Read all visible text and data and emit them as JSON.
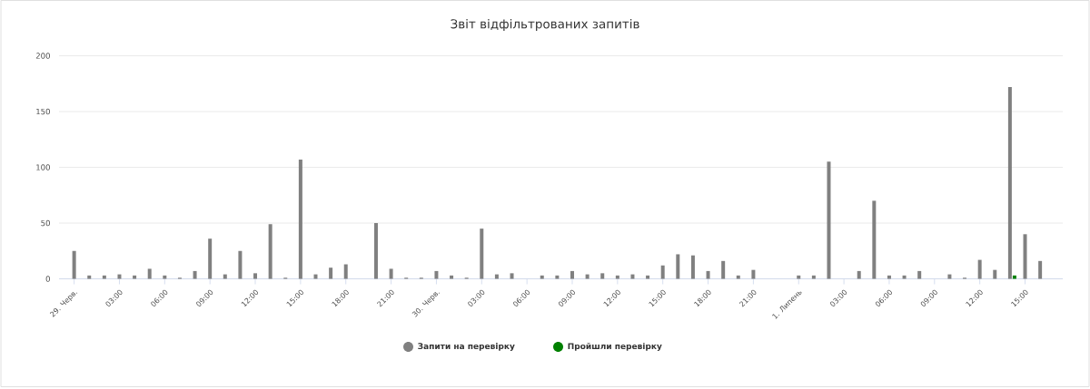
{
  "chart_data": {
    "type": "bar",
    "title": "Звіт відфільтрованих запитів",
    "categories": [
      "29. Черв.",
      null,
      null,
      "03:00",
      null,
      null,
      "06:00",
      null,
      null,
      "09:00",
      null,
      null,
      "12:00",
      null,
      null,
      "15:00",
      null,
      null,
      "18:00",
      null,
      null,
      "21:00",
      null,
      null,
      "30. Черв.",
      null,
      null,
      "03:00",
      null,
      null,
      "06:00",
      null,
      null,
      "09:00",
      null,
      null,
      "12:00",
      null,
      null,
      "15:00",
      null,
      null,
      "18:00",
      null,
      null,
      "21:00",
      null,
      null,
      "1. Липень",
      null,
      null,
      "03:00",
      null,
      null,
      "06:00",
      null,
      null,
      "09:00",
      null,
      null,
      "12:00",
      null,
      null,
      "15:00",
      null
    ],
    "series": [
      {
        "name": "Запити на перевірку",
        "color": "#808080",
        "values": [
          25,
          3,
          3,
          4,
          3,
          9,
          3,
          1,
          7,
          36,
          4,
          25,
          5,
          49,
          1,
          107,
          4,
          10,
          13,
          null,
          50,
          9,
          1,
          1,
          7,
          3,
          1,
          45,
          4,
          5,
          null,
          3,
          3,
          7,
          4,
          5,
          3,
          4,
          3,
          12,
          22,
          21,
          7,
          16,
          3,
          8,
          null,
          null,
          3,
          3,
          105,
          null,
          7,
          70,
          3,
          3,
          7,
          null,
          4,
          1,
          17,
          8,
          172,
          40,
          16
        ]
      },
      {
        "name": "Пройшли перевірку",
        "color": "#008000",
        "values": [
          null,
          null,
          null,
          null,
          null,
          null,
          null,
          null,
          null,
          null,
          null,
          null,
          null,
          null,
          null,
          null,
          null,
          null,
          null,
          null,
          null,
          null,
          null,
          null,
          null,
          null,
          null,
          null,
          null,
          null,
          null,
          null,
          null,
          null,
          null,
          null,
          null,
          null,
          null,
          null,
          null,
          null,
          null,
          null,
          null,
          null,
          null,
          null,
          null,
          null,
          null,
          null,
          null,
          null,
          null,
          null,
          null,
          null,
          null,
          null,
          null,
          null,
          3,
          null,
          null
        ]
      }
    ],
    "ylim": [
      0,
      200
    ],
    "yticks": [
      0,
      50,
      100,
      150,
      200
    ],
    "grid": "y",
    "legend": "bottom"
  }
}
